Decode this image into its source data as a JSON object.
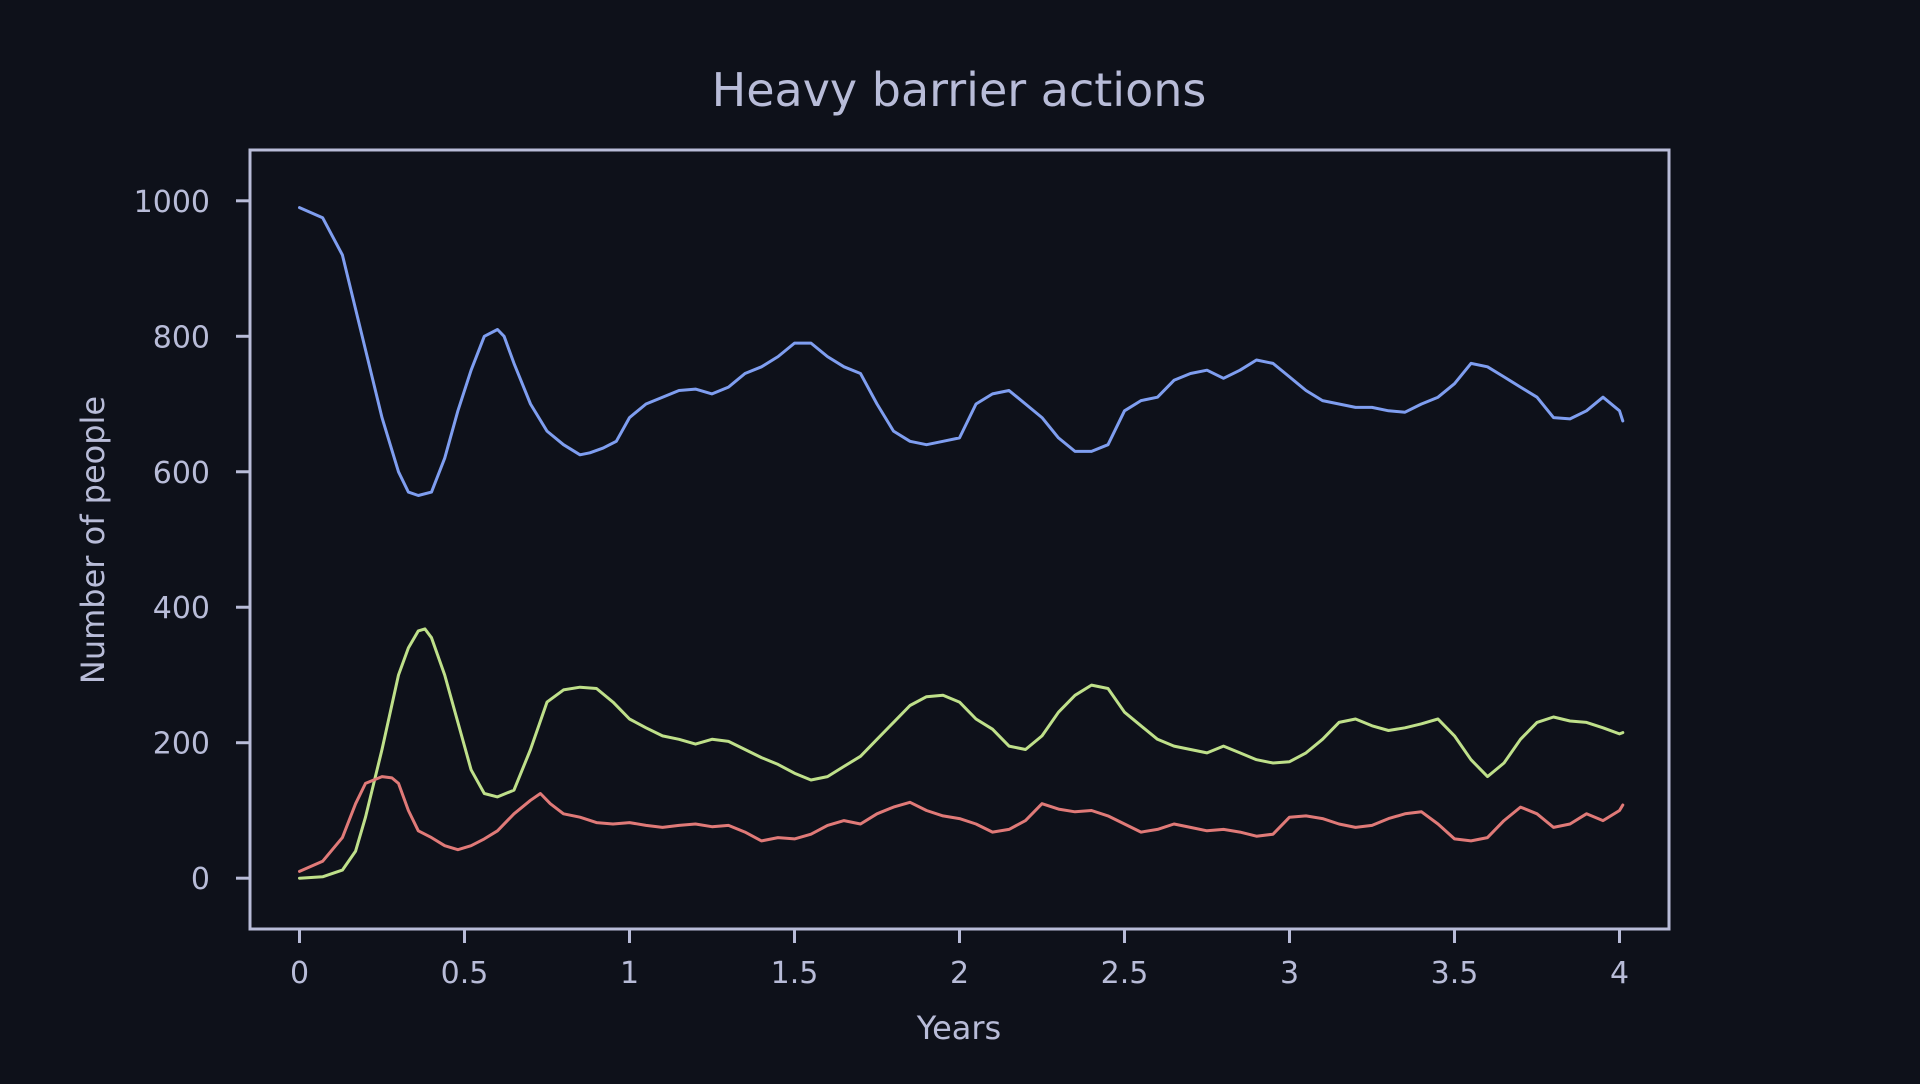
{
  "chart_data": {
    "type": "line",
    "title": "Heavy barrier actions",
    "xlabel": "Years",
    "ylabel": "Number of people",
    "xlim": [
      -0.15,
      4.15
    ],
    "ylim": [
      -75,
      1075
    ],
    "xticks": [
      0,
      0.5,
      1,
      1.5,
      2,
      2.5,
      3,
      3.5,
      4
    ],
    "xtick_labels": [
      "0",
      "0.5",
      "1",
      "1.5",
      "2",
      "2.5",
      "3",
      "3.5",
      "4"
    ],
    "yticks": [
      0,
      200,
      400,
      600,
      800,
      1000
    ],
    "ytick_labels": [
      "0",
      "200",
      "400",
      "600",
      "800",
      "1000"
    ],
    "grid": false,
    "legend": "none",
    "colors": {
      "background": "#0e111a",
      "axes": "#b8bcd8",
      "text": "#b8bcd8"
    },
    "series": [
      {
        "color": "#7f9ef0",
        "x": [
          0,
          0.07,
          0.13,
          0.2,
          0.25,
          0.3,
          0.33,
          0.36,
          0.4,
          0.44,
          0.48,
          0.52,
          0.56,
          0.6,
          0.62,
          0.65,
          0.7,
          0.75,
          0.8,
          0.85,
          0.88,
          0.92,
          0.96,
          1.0,
          1.05,
          1.1,
          1.15,
          1.2,
          1.25,
          1.3,
          1.35,
          1.4,
          1.45,
          1.5,
          1.55,
          1.6,
          1.65,
          1.7,
          1.75,
          1.8,
          1.85,
          1.9,
          1.95,
          2.0,
          2.05,
          2.1,
          2.15,
          2.2,
          2.25,
          2.3,
          2.35,
          2.4,
          2.45,
          2.5,
          2.55,
          2.6,
          2.65,
          2.7,
          2.75,
          2.8,
          2.85,
          2.9,
          2.95,
          3.0,
          3.05,
          3.1,
          3.15,
          3.2,
          3.25,
          3.3,
          3.35,
          3.4,
          3.45,
          3.5,
          3.55,
          3.6,
          3.65,
          3.7,
          3.75,
          3.8,
          3.85,
          3.9,
          3.95,
          4.0,
          4.01
        ],
        "y": [
          990,
          975,
          920,
          780,
          680,
          600,
          570,
          565,
          570,
          620,
          690,
          750,
          800,
          810,
          800,
          760,
          700,
          660,
          640,
          625,
          628,
          635,
          645,
          680,
          700,
          710,
          720,
          722,
          715,
          725,
          745,
          755,
          770,
          790,
          790,
          770,
          755,
          745,
          700,
          660,
          645,
          640,
          645,
          650,
          700,
          715,
          720,
          700,
          680,
          650,
          630,
          630,
          640,
          690,
          705,
          710,
          735,
          745,
          750,
          738,
          750,
          765,
          760,
          740,
          720,
          705,
          700,
          695,
          695,
          690,
          688,
          700,
          710,
          730,
          760,
          755,
          740,
          725,
          710,
          680,
          678,
          690,
          710,
          690,
          675
        ]
      },
      {
        "color": "#bfe08a",
        "x": [
          0,
          0.07,
          0.13,
          0.17,
          0.2,
          0.25,
          0.3,
          0.33,
          0.36,
          0.38,
          0.4,
          0.44,
          0.48,
          0.52,
          0.56,
          0.6,
          0.65,
          0.7,
          0.75,
          0.8,
          0.85,
          0.9,
          0.95,
          1.0,
          1.05,
          1.1,
          1.15,
          1.2,
          1.25,
          1.3,
          1.35,
          1.4,
          1.45,
          1.5,
          1.55,
          1.6,
          1.65,
          1.7,
          1.75,
          1.8,
          1.85,
          1.9,
          1.95,
          2.0,
          2.05,
          2.1,
          2.15,
          2.2,
          2.25,
          2.3,
          2.35,
          2.4,
          2.45,
          2.5,
          2.55,
          2.6,
          2.65,
          2.7,
          2.75,
          2.8,
          2.85,
          2.9,
          2.95,
          3.0,
          3.05,
          3.1,
          3.15,
          3.2,
          3.25,
          3.3,
          3.35,
          3.4,
          3.45,
          3.5,
          3.55,
          3.6,
          3.65,
          3.7,
          3.75,
          3.8,
          3.85,
          3.9,
          3.95,
          4.0,
          4.01
        ],
        "y": [
          0,
          2,
          12,
          40,
          90,
          190,
          300,
          340,
          365,
          368,
          355,
          300,
          230,
          160,
          125,
          120,
          130,
          190,
          260,
          278,
          282,
          280,
          260,
          235,
          222,
          210,
          205,
          198,
          205,
          202,
          190,
          178,
          168,
          155,
          145,
          150,
          165,
          180,
          205,
          230,
          255,
          268,
          270,
          260,
          235,
          220,
          195,
          190,
          210,
          245,
          270,
          285,
          280,
          245,
          225,
          205,
          195,
          190,
          185,
          195,
          185,
          175,
          170,
          172,
          185,
          205,
          230,
          235,
          225,
          218,
          222,
          228,
          235,
          210,
          175,
          150,
          170,
          205,
          230,
          238,
          232,
          230,
          222,
          213,
          215
        ]
      },
      {
        "color": "#e07a78",
        "x": [
          0,
          0.07,
          0.13,
          0.17,
          0.2,
          0.25,
          0.28,
          0.3,
          0.33,
          0.36,
          0.4,
          0.44,
          0.48,
          0.52,
          0.56,
          0.6,
          0.65,
          0.7,
          0.73,
          0.76,
          0.8,
          0.85,
          0.9,
          0.95,
          1.0,
          1.05,
          1.1,
          1.15,
          1.2,
          1.25,
          1.3,
          1.35,
          1.4,
          1.45,
          1.5,
          1.55,
          1.6,
          1.65,
          1.7,
          1.75,
          1.8,
          1.85,
          1.9,
          1.95,
          2.0,
          2.05,
          2.1,
          2.15,
          2.2,
          2.25,
          2.3,
          2.35,
          2.4,
          2.45,
          2.5,
          2.55,
          2.6,
          2.65,
          2.7,
          2.75,
          2.8,
          2.85,
          2.9,
          2.95,
          3.0,
          3.05,
          3.1,
          3.15,
          3.2,
          3.25,
          3.3,
          3.35,
          3.4,
          3.45,
          3.5,
          3.55,
          3.6,
          3.65,
          3.7,
          3.75,
          3.8,
          3.85,
          3.9,
          3.95,
          4.0,
          4.01
        ],
        "y": [
          10,
          25,
          60,
          110,
          140,
          150,
          148,
          140,
          100,
          70,
          60,
          48,
          42,
          48,
          58,
          70,
          95,
          115,
          125,
          110,
          95,
          90,
          82,
          80,
          82,
          78,
          75,
          78,
          80,
          76,
          78,
          68,
          55,
          60,
          58,
          65,
          78,
          85,
          80,
          95,
          105,
          112,
          100,
          92,
          88,
          80,
          68,
          72,
          85,
          110,
          102,
          98,
          100,
          92,
          80,
          68,
          72,
          80,
          75,
          70,
          72,
          68,
          62,
          65,
          90,
          92,
          88,
          80,
          75,
          78,
          88,
          95,
          98,
          80,
          58,
          55,
          60,
          85,
          105,
          95,
          75,
          80,
          95,
          85,
          100,
          108
        ]
      }
    ]
  }
}
